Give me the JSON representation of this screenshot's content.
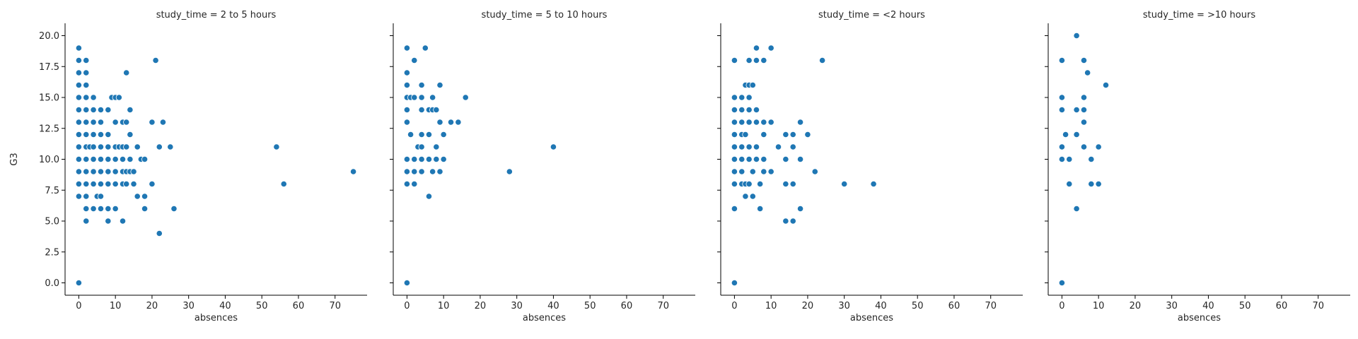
{
  "chart_data": {
    "type": "scatter",
    "xlabel": "absences",
    "ylabel": "G3",
    "xlim": [
      -3.75,
      78.75
    ],
    "ylim": [
      -1,
      21
    ],
    "xticks": [
      0,
      10,
      20,
      30,
      40,
      50,
      60,
      70
    ],
    "yticks": [
      0.0,
      2.5,
      5.0,
      7.5,
      10.0,
      12.5,
      15.0,
      17.5,
      20.0
    ],
    "ytick_labels": [
      "0.0",
      "2.5",
      "5.0",
      "7.5",
      "10.0",
      "12.5",
      "15.0",
      "17.5",
      "20.0"
    ],
    "grid": false,
    "point_color": "#1f77b4",
    "panels": [
      {
        "title": "study_time = 2 to 5 hours",
        "points": [
          [
            0,
            19
          ],
          [
            0,
            18
          ],
          [
            0,
            17
          ],
          [
            0,
            16
          ],
          [
            0,
            15
          ],
          [
            0,
            14
          ],
          [
            0,
            13
          ],
          [
            0,
            12
          ],
          [
            0,
            11
          ],
          [
            0,
            10
          ],
          [
            0,
            9
          ],
          [
            0,
            8
          ],
          [
            0,
            7
          ],
          [
            0,
            0
          ],
          [
            2,
            18
          ],
          [
            2,
            17
          ],
          [
            2,
            16
          ],
          [
            2,
            15
          ],
          [
            2,
            14
          ],
          [
            2,
            13
          ],
          [
            2,
            12
          ],
          [
            2,
            11
          ],
          [
            2,
            10
          ],
          [
            2,
            9
          ],
          [
            2,
            8
          ],
          [
            2,
            7
          ],
          [
            2,
            6
          ],
          [
            2,
            5
          ],
          [
            3,
            11
          ],
          [
            4,
            15
          ],
          [
            4,
            14
          ],
          [
            4,
            13
          ],
          [
            4,
            12
          ],
          [
            4,
            11
          ],
          [
            4,
            10
          ],
          [
            4,
            9
          ],
          [
            4,
            8
          ],
          [
            4,
            6
          ],
          [
            5,
            7
          ],
          [
            6,
            14
          ],
          [
            6,
            13
          ],
          [
            6,
            12
          ],
          [
            6,
            11
          ],
          [
            6,
            10
          ],
          [
            6,
            9
          ],
          [
            6,
            8
          ],
          [
            6,
            7
          ],
          [
            6,
            6
          ],
          [
            8,
            14
          ],
          [
            8,
            12
          ],
          [
            8,
            11
          ],
          [
            8,
            10
          ],
          [
            8,
            9
          ],
          [
            8,
            8
          ],
          [
            8,
            6
          ],
          [
            8,
            5
          ],
          [
            9,
            15
          ],
          [
            10,
            15
          ],
          [
            10,
            13
          ],
          [
            10,
            11
          ],
          [
            10,
            10
          ],
          [
            10,
            9
          ],
          [
            10,
            8
          ],
          [
            10,
            6
          ],
          [
            11,
            15
          ],
          [
            11,
            11
          ],
          [
            12,
            13
          ],
          [
            12,
            11
          ],
          [
            12,
            10
          ],
          [
            12,
            9
          ],
          [
            12,
            8
          ],
          [
            12,
            5
          ],
          [
            13,
            17
          ],
          [
            13,
            13
          ],
          [
            13,
            11
          ],
          [
            13,
            9
          ],
          [
            13,
            8
          ],
          [
            14,
            14
          ],
          [
            14,
            12
          ],
          [
            14,
            10
          ],
          [
            14,
            9
          ],
          [
            15,
            9
          ],
          [
            15,
            8
          ],
          [
            16,
            11
          ],
          [
            16,
            7
          ],
          [
            17,
            10
          ],
          [
            18,
            10
          ],
          [
            18,
            7
          ],
          [
            18,
            6
          ],
          [
            20,
            13
          ],
          [
            20,
            8
          ],
          [
            21,
            18
          ],
          [
            22,
            11
          ],
          [
            22,
            4
          ],
          [
            23,
            13
          ],
          [
            25,
            11
          ],
          [
            26,
            6
          ],
          [
            54,
            11
          ],
          [
            56,
            8
          ],
          [
            75,
            9
          ]
        ]
      },
      {
        "title": "study_time = 5 to 10 hours",
        "points": [
          [
            0,
            19
          ],
          [
            0,
            17
          ],
          [
            0,
            16
          ],
          [
            0,
            15
          ],
          [
            0,
            14
          ],
          [
            0,
            13
          ],
          [
            0,
            10
          ],
          [
            0,
            9
          ],
          [
            0,
            8
          ],
          [
            0,
            0
          ],
          [
            1,
            15
          ],
          [
            1,
            12
          ],
          [
            2,
            18
          ],
          [
            2,
            15
          ],
          [
            2,
            10
          ],
          [
            2,
            9
          ],
          [
            2,
            8
          ],
          [
            3,
            11
          ],
          [
            4,
            16
          ],
          [
            4,
            15
          ],
          [
            4,
            14
          ],
          [
            4,
            12
          ],
          [
            4,
            11
          ],
          [
            4,
            10
          ],
          [
            4,
            9
          ],
          [
            5,
            19
          ],
          [
            6,
            14
          ],
          [
            6,
            12
          ],
          [
            6,
            10
          ],
          [
            6,
            7
          ],
          [
            7,
            15
          ],
          [
            7,
            14
          ],
          [
            7,
            9
          ],
          [
            8,
            14
          ],
          [
            8,
            11
          ],
          [
            8,
            10
          ],
          [
            9,
            16
          ],
          [
            9,
            13
          ],
          [
            9,
            9
          ],
          [
            10,
            12
          ],
          [
            10,
            10
          ],
          [
            12,
            13
          ],
          [
            14,
            13
          ],
          [
            16,
            15
          ],
          [
            28,
            9
          ],
          [
            40,
            11
          ]
        ]
      },
      {
        "title": "study_time = <2 hours",
        "points": [
          [
            0,
            18
          ],
          [
            0,
            15
          ],
          [
            0,
            14
          ],
          [
            0,
            13
          ],
          [
            0,
            12
          ],
          [
            0,
            11
          ],
          [
            0,
            10
          ],
          [
            0,
            9
          ],
          [
            0,
            8
          ],
          [
            0,
            6
          ],
          [
            0,
            0
          ],
          [
            2,
            15
          ],
          [
            2,
            14
          ],
          [
            2,
            13
          ],
          [
            2,
            12
          ],
          [
            2,
            11
          ],
          [
            2,
            10
          ],
          [
            2,
            9
          ],
          [
            2,
            8
          ],
          [
            3,
            16
          ],
          [
            3,
            12
          ],
          [
            3,
            8
          ],
          [
            3,
            7
          ],
          [
            4,
            18
          ],
          [
            4,
            16
          ],
          [
            4,
            15
          ],
          [
            4,
            14
          ],
          [
            4,
            13
          ],
          [
            4,
            11
          ],
          [
            4,
            10
          ],
          [
            4,
            8
          ],
          [
            5,
            16
          ],
          [
            5,
            9
          ],
          [
            5,
            7
          ],
          [
            6,
            19
          ],
          [
            6,
            18
          ],
          [
            6,
            14
          ],
          [
            6,
            13
          ],
          [
            6,
            11
          ],
          [
            6,
            10
          ],
          [
            7,
            8
          ],
          [
            7,
            6
          ],
          [
            8,
            18
          ],
          [
            8,
            13
          ],
          [
            8,
            12
          ],
          [
            8,
            10
          ],
          [
            8,
            9
          ],
          [
            10,
            19
          ],
          [
            10,
            13
          ],
          [
            10,
            9
          ],
          [
            12,
            11
          ],
          [
            14,
            12
          ],
          [
            14,
            10
          ],
          [
            14,
            8
          ],
          [
            14,
            5
          ],
          [
            16,
            12
          ],
          [
            16,
            11
          ],
          [
            16,
            8
          ],
          [
            16,
            5
          ],
          [
            18,
            13
          ],
          [
            18,
            10
          ],
          [
            18,
            6
          ],
          [
            20,
            12
          ],
          [
            22,
            9
          ],
          [
            24,
            18
          ],
          [
            30,
            8
          ],
          [
            38,
            8
          ]
        ]
      },
      {
        "title": "study_time = >10 hours",
        "points": [
          [
            0,
            18
          ],
          [
            0,
            15
          ],
          [
            0,
            14
          ],
          [
            0,
            11
          ],
          [
            0,
            10
          ],
          [
            0,
            0
          ],
          [
            1,
            12
          ],
          [
            2,
            10
          ],
          [
            2,
            8
          ],
          [
            4,
            20
          ],
          [
            4,
            14
          ],
          [
            4,
            12
          ],
          [
            4,
            6
          ],
          [
            6,
            18
          ],
          [
            6,
            15
          ],
          [
            6,
            14
          ],
          [
            6,
            13
          ],
          [
            6,
            11
          ],
          [
            7,
            17
          ],
          [
            8,
            10
          ],
          [
            8,
            8
          ],
          [
            10,
            11
          ],
          [
            10,
            8
          ],
          [
            12,
            16
          ]
        ]
      }
    ]
  }
}
